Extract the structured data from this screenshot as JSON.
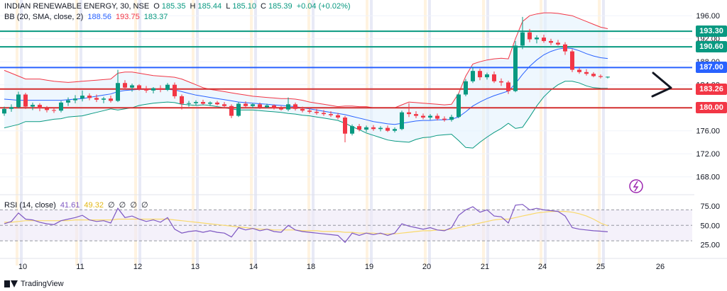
{
  "header": {
    "symbol": "INDIAN RENEWABLE ENERGY, 30, NSE",
    "ohlc": [
      {
        "label": "O",
        "value": "185.35"
      },
      {
        "label": "H",
        "value": "185.44"
      },
      {
        "label": "L",
        "value": "185.10"
      },
      {
        "label": "C",
        "value": "185.39"
      }
    ],
    "change": "+0.04 (+0.02%)",
    "bb_label": "BB (20, SMA, close, 2)",
    "bb_values": [
      "188.56",
      "193.75",
      "183.37"
    ]
  },
  "rsi": {
    "label": "RSI (14, close)",
    "values": [
      "41.61",
      "49.32",
      "∅",
      "∅",
      "∅",
      "∅"
    ]
  },
  "footer": {
    "brand": "TradingView"
  },
  "colors": {
    "up": "#089981",
    "down": "#f23645",
    "bb_upper": "#f23645",
    "bb_lower": "#089981",
    "bb_basis": "#2962ff",
    "bb_fill": "#e3f2fd",
    "rsi": "#7e57c2",
    "rsi_ma": "#f9d96b",
    "level_green": "#089981",
    "level_blue": "#2962ff",
    "level_red": "#d32f2f",
    "badge_green": "#089981",
    "badge_blue": "#2962ff",
    "badge_red": "#f23645"
  },
  "chart_data": {
    "type": "candlestick",
    "price_ylim": [
      165.5,
      197.5
    ],
    "price_ticks": [
      "196.00",
      "192.00",
      "188.00",
      "184.00",
      "180.00",
      "176.00",
      "172.00",
      "168.00"
    ],
    "x_labels": [
      "10",
      "11",
      "12",
      "13",
      "14",
      "18",
      "19",
      "20",
      "21",
      "24",
      "25",
      "26"
    ],
    "levels": [
      {
        "value": 193.3,
        "label": "193.30",
        "color": "green"
      },
      {
        "value": 190.6,
        "label": "190.60",
        "color": "green"
      },
      {
        "value": 187.0,
        "label": "187.00",
        "color": "blue"
      },
      {
        "value": 183.26,
        "label": "183.26",
        "color": "red"
      },
      {
        "value": 180.0,
        "label": "180.00",
        "color": "red"
      }
    ],
    "candles": [
      [
        179.0,
        180.2,
        178.6,
        179.8
      ],
      [
        179.8,
        180.6,
        179.3,
        180.1
      ],
      [
        180.1,
        182.8,
        179.9,
        182.3
      ],
      [
        182.3,
        182.6,
        179.8,
        180.2
      ],
      [
        180.2,
        180.9,
        179.6,
        180.5
      ],
      [
        180.5,
        180.8,
        179.4,
        179.9
      ],
      [
        179.9,
        180.3,
        179.2,
        179.6
      ],
      [
        179.6,
        180.1,
        179.1,
        179.5
      ],
      [
        179.5,
        181.2,
        179.2,
        180.9
      ],
      [
        180.9,
        181.8,
        180.3,
        181.3
      ],
      [
        181.3,
        182.2,
        180.8,
        181.6
      ],
      [
        181.6,
        183.0,
        181.1,
        182.1
      ],
      [
        182.1,
        182.5,
        181.3,
        181.7
      ],
      [
        181.7,
        182.3,
        181.0,
        181.4
      ],
      [
        181.4,
        181.9,
        180.8,
        181.6
      ],
      [
        181.6,
        182.1,
        180.9,
        181.2
      ],
      [
        181.2,
        186.6,
        181.0,
        184.3
      ],
      [
        184.3,
        184.8,
        183.2,
        183.5
      ],
      [
        183.5,
        184.2,
        182.8,
        183.9
      ],
      [
        183.9,
        184.1,
        183.0,
        183.3
      ],
      [
        183.3,
        183.8,
        182.6,
        183.0
      ],
      [
        183.0,
        183.6,
        182.5,
        183.4
      ],
      [
        183.4,
        183.9,
        182.7,
        183.1
      ],
      [
        183.1,
        184.3,
        182.9,
        184.0
      ],
      [
        184.0,
        184.4,
        181.6,
        182.0
      ],
      [
        182.0,
        182.3,
        179.7,
        180.7
      ],
      [
        180.7,
        181.2,
        180.2,
        180.8
      ],
      [
        180.8,
        181.3,
        180.4,
        181.0
      ],
      [
        181.0,
        181.4,
        180.5,
        180.7
      ],
      [
        180.7,
        181.1,
        180.3,
        180.9
      ],
      [
        180.9,
        181.2,
        180.4,
        180.6
      ],
      [
        180.6,
        181.0,
        180.1,
        180.3
      ],
      [
        180.3,
        180.6,
        178.2,
        178.6
      ],
      [
        178.6,
        181.0,
        178.4,
        180.7
      ],
      [
        180.7,
        181.1,
        180.0,
        180.3
      ],
      [
        180.3,
        180.8,
        179.9,
        180.6
      ],
      [
        180.6,
        180.9,
        179.8,
        180.1
      ],
      [
        180.1,
        180.7,
        179.9,
        180.4
      ],
      [
        180.4,
        180.6,
        179.7,
        179.9
      ],
      [
        179.9,
        180.3,
        179.5,
        179.7
      ],
      [
        179.7,
        181.8,
        179.4,
        180.6
      ],
      [
        180.6,
        180.9,
        179.5,
        179.8
      ],
      [
        179.8,
        180.2,
        179.2,
        179.5
      ],
      [
        179.5,
        180.1,
        179.0,
        179.3
      ],
      [
        179.3,
        179.8,
        178.8,
        179.1
      ],
      [
        179.1,
        179.6,
        178.6,
        178.9
      ],
      [
        178.9,
        179.4,
        178.4,
        178.7
      ],
      [
        178.7,
        179.1,
        178.0,
        178.3
      ],
      [
        178.3,
        178.6,
        174.0,
        175.5
      ],
      [
        175.5,
        177.1,
        175.2,
        176.8
      ],
      [
        176.8,
        177.2,
        175.9,
        176.2
      ],
      [
        176.2,
        176.9,
        175.8,
        176.6
      ],
      [
        176.6,
        177.0,
        176.0,
        176.3
      ],
      [
        176.3,
        176.8,
        175.9,
        176.5
      ],
      [
        176.5,
        176.9,
        175.8,
        176.0
      ],
      [
        176.0,
        176.6,
        175.7,
        176.3
      ],
      [
        176.3,
        179.5,
        176.1,
        179.2
      ],
      [
        179.2,
        180.8,
        178.4,
        178.9
      ],
      [
        178.9,
        179.4,
        178.2,
        178.6
      ],
      [
        178.6,
        179.0,
        178.0,
        178.3
      ],
      [
        178.3,
        178.9,
        177.9,
        178.6
      ],
      [
        178.6,
        179.0,
        177.8,
        178.1
      ],
      [
        178.1,
        178.5,
        177.6,
        177.9
      ],
      [
        177.9,
        178.8,
        177.6,
        178.4
      ],
      [
        178.4,
        182.5,
        178.2,
        182.3
      ],
      [
        182.3,
        185.0,
        182.0,
        184.6
      ],
      [
        184.6,
        187.1,
        184.3,
        186.4
      ],
      [
        186.4,
        186.8,
        184.8,
        185.3
      ],
      [
        185.3,
        186.1,
        184.9,
        185.8
      ],
      [
        185.8,
        186.3,
        184.3,
        184.6
      ],
      [
        184.6,
        185.1,
        183.8,
        184.4
      ],
      [
        184.4,
        184.7,
        182.4,
        182.9
      ],
      [
        182.9,
        191.6,
        182.7,
        190.8
      ],
      [
        190.8,
        195.8,
        190.2,
        193.1
      ],
      [
        193.1,
        193.7,
        191.4,
        191.9
      ],
      [
        191.9,
        192.6,
        191.2,
        192.2
      ],
      [
        192.2,
        192.7,
        191.3,
        191.6
      ],
      [
        191.6,
        192.0,
        190.9,
        191.3
      ],
      [
        191.3,
        191.8,
        190.8,
        191.0
      ],
      [
        191.0,
        191.4,
        189.2,
        189.8
      ],
      [
        189.8,
        190.2,
        186.2,
        186.6
      ],
      [
        186.6,
        187.0,
        185.9,
        186.2
      ],
      [
        186.2,
        186.7,
        185.6,
        185.9
      ],
      [
        185.9,
        186.2,
        185.3,
        185.5
      ],
      [
        185.5,
        185.8,
        185.1,
        185.35
      ],
      [
        185.35,
        185.44,
        185.1,
        185.39
      ]
    ],
    "rsi_ylim": [
      10,
      85
    ],
    "rsi_ticks": [
      "75.00",
      "50.00",
      "25.00"
    ],
    "rsi_bands": [
      30,
      50,
      70
    ],
    "rsi_values": [
      52,
      55,
      66,
      58,
      57,
      54,
      52,
      51,
      56,
      58,
      60,
      63,
      57,
      55,
      56,
      53,
      72,
      60,
      62,
      58,
      55,
      57,
      54,
      60,
      45,
      40,
      42,
      43,
      41,
      43,
      41,
      40,
      35,
      47,
      44,
      46,
      43,
      45,
      42,
      41,
      50,
      44,
      42,
      41,
      40,
      39,
      38,
      37,
      28,
      40,
      37,
      40,
      38,
      40,
      37,
      40,
      52,
      49,
      47,
      45,
      47,
      44,
      43,
      47,
      63,
      70,
      74,
      67,
      70,
      62,
      61,
      53,
      76,
      77,
      70,
      72,
      70,
      69,
      68,
      62,
      47,
      45,
      44,
      43,
      42.5,
      41.61
    ],
    "rsi_ma_values": [
      54,
      54,
      55,
      56,
      56,
      56,
      56,
      56,
      56,
      56,
      57,
      57,
      57,
      57,
      57,
      57,
      58,
      58,
      58,
      58,
      58,
      58,
      58,
      58,
      57,
      56,
      55,
      54,
      53,
      52,
      51,
      50,
      49,
      48,
      47,
      46,
      45,
      45,
      44,
      44,
      44,
      44,
      43,
      43,
      43,
      42,
      42,
      42,
      41,
      41,
      40,
      40,
      40,
      39,
      39,
      39,
      40,
      41,
      42,
      43,
      43,
      44,
      44,
      45,
      47,
      49,
      51,
      53,
      55,
      57,
      58,
      58,
      60,
      62,
      64,
      66,
      67,
      68,
      68,
      68,
      67,
      65,
      62,
      58,
      53,
      49.32
    ],
    "bb_upper": [
      186.5,
      186.0,
      185.5,
      185.0,
      185.0,
      185.0,
      184.8,
      184.6,
      184.5,
      184.4,
      184.5,
      184.6,
      184.7,
      184.8,
      184.9,
      185.0,
      186.0,
      186.2,
      186.2,
      186.0,
      185.8,
      185.6,
      185.5,
      185.4,
      185.3,
      185.0,
      184.5,
      184.0,
      183.5,
      183.2,
      183.0,
      182.8,
      182.6,
      182.4,
      182.2,
      182.0,
      181.9,
      181.8,
      181.7,
      181.6,
      181.6,
      181.5,
      181.3,
      181.0,
      180.8,
      180.6,
      180.4,
      180.2,
      180.3,
      180.3,
      180.2,
      180.2,
      180.0,
      180.0,
      180.0,
      180.0,
      180.5,
      181.0,
      180.9,
      180.8,
      180.7,
      180.6,
      180.5,
      180.6,
      182.5,
      185.5,
      187.6,
      188.0,
      188.3,
      188.5,
      188.6,
      188.5,
      192.0,
      195.0,
      196.0,
      196.3,
      196.5,
      196.5,
      196.4,
      196.2,
      196.0,
      195.5,
      195.0,
      194.5,
      194.0,
      193.75
    ],
    "bb_basis": [
      181.5,
      181.4,
      181.3,
      181.3,
      181.3,
      181.3,
      181.3,
      181.3,
      181.3,
      181.4,
      181.5,
      181.6,
      181.8,
      182.0,
      182.2,
      182.4,
      182.8,
      183.0,
      183.1,
      183.2,
      183.2,
      183.2,
      183.2,
      183.2,
      183.1,
      182.8,
      182.5,
      182.2,
      182.0,
      181.8,
      181.6,
      181.4,
      181.2,
      181.0,
      180.9,
      180.8,
      180.7,
      180.6,
      180.5,
      180.4,
      180.3,
      180.2,
      180.0,
      179.8,
      179.6,
      179.4,
      179.2,
      179.0,
      178.8,
      178.5,
      178.2,
      177.9,
      177.6,
      177.4,
      177.2,
      177.1,
      177.3,
      177.5,
      177.7,
      177.8,
      177.8,
      177.9,
      177.9,
      178.0,
      178.4,
      179.3,
      180.3,
      181.0,
      181.6,
      182.1,
      182.5,
      182.9,
      184.2,
      185.8,
      187.2,
      188.3,
      189.2,
      189.8,
      190.2,
      190.4,
      190.3,
      189.9,
      189.4,
      189.0,
      188.7,
      188.56
    ],
    "bb_lower": [
      176.5,
      176.8,
      177.1,
      177.6,
      177.6,
      177.6,
      177.8,
      178.0,
      178.1,
      178.4,
      178.5,
      178.6,
      178.9,
      179.2,
      179.5,
      179.8,
      179.6,
      179.8,
      180.0,
      180.4,
      180.6,
      180.8,
      180.9,
      181.0,
      180.9,
      180.6,
      180.5,
      180.4,
      180.5,
      180.4,
      180.2,
      180.0,
      179.8,
      179.6,
      179.6,
      179.6,
      179.5,
      179.4,
      179.3,
      179.2,
      179.0,
      178.9,
      178.7,
      178.6,
      178.4,
      178.2,
      178.0,
      177.8,
      177.3,
      176.7,
      176.2,
      175.6,
      175.2,
      174.8,
      174.4,
      174.2,
      174.1,
      174.0,
      174.5,
      174.8,
      174.9,
      175.2,
      175.3,
      175.4,
      174.3,
      173.1,
      173.0,
      174.0,
      174.9,
      175.7,
      176.4,
      177.3,
      176.4,
      176.6,
      178.4,
      180.3,
      181.9,
      183.1,
      184.0,
      184.6,
      184.6,
      184.3,
      183.8,
      183.5,
      183.4,
      183.37
    ]
  }
}
